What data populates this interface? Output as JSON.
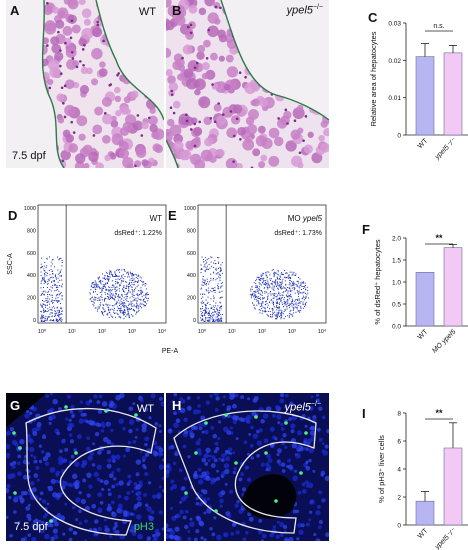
{
  "panels": {
    "A": {
      "letter": "A",
      "label": "WT",
      "dpf": "7.5 dpf"
    },
    "B": {
      "letter": "B",
      "label": "ypel5",
      "label_sup": "−/−"
    },
    "C": {
      "letter": "C",
      "ylabel": "Relative area of hepatocytes",
      "sig": "n.s."
    },
    "D": {
      "letter": "D",
      "label": "WT",
      "gate": "dsRed⁺: 1.22%"
    },
    "E": {
      "letter": "E",
      "label_pre": "MO ",
      "label_ital": "ypel5",
      "gate": "dsRed⁺: 1.73%"
    },
    "facs": {
      "ylabel": "SSC-A",
      "xlabel": "PE-A",
      "yticks": [
        "1000",
        "800",
        "600",
        "400",
        "200",
        "0"
      ],
      "xticks": [
        "10⁰",
        "10¹",
        "10²",
        "10³",
        "10⁴"
      ]
    },
    "F": {
      "letter": "F",
      "ylabel": "% of dsRed⁺ hepatocytes",
      "sig": "**"
    },
    "G": {
      "letter": "G",
      "label": "WT",
      "dpf": "7.5 dpf",
      "stain": "pH3"
    },
    "H": {
      "letter": "H",
      "label": "ypel5",
      "label_sup": "−/−"
    },
    "I": {
      "letter": "I",
      "ylabel": "% of pH3⁺ liver cells",
      "sig": "**"
    }
  },
  "chart_data": [
    {
      "type": "bar",
      "id": "C",
      "categories": [
        "WT",
        "ypel5⁻/⁻"
      ],
      "values": [
        0.021,
        0.022
      ],
      "errors": [
        0.0035,
        0.002
      ],
      "colors": [
        "#b7b6f2",
        "#f2c9f2"
      ],
      "ylim": [
        0,
        0.03
      ],
      "yticks": [
        "0",
        "0.01",
        "0.02",
        "0.03"
      ],
      "ylabel": "Relative area of hepatocytes"
    },
    {
      "type": "bar",
      "id": "F",
      "categories": [
        "WT",
        "MO ypel5"
      ],
      "values": [
        1.22,
        1.78
      ],
      "errors": [
        0,
        0.07
      ],
      "colors": [
        "#b7b6f2",
        "#f2c9f2"
      ],
      "ylim": [
        0,
        2.0
      ],
      "yticks": [
        "0.0",
        "0.5",
        "1.0",
        "1.5",
        "2.0"
      ],
      "ylabel": "% of dsRed⁺ hepatocytes"
    },
    {
      "type": "bar",
      "id": "I",
      "categories": [
        "WT",
        "ypel5⁻/⁻"
      ],
      "values": [
        1.7,
        5.5
      ],
      "errors": [
        0.7,
        1.8
      ],
      "colors": [
        "#b7b6f2",
        "#f2c9f2"
      ],
      "ylim": [
        0,
        8
      ],
      "yticks": [
        "0",
        "2",
        "4",
        "6",
        "8"
      ],
      "ylabel": "% of pH3⁺ liver cells"
    }
  ]
}
